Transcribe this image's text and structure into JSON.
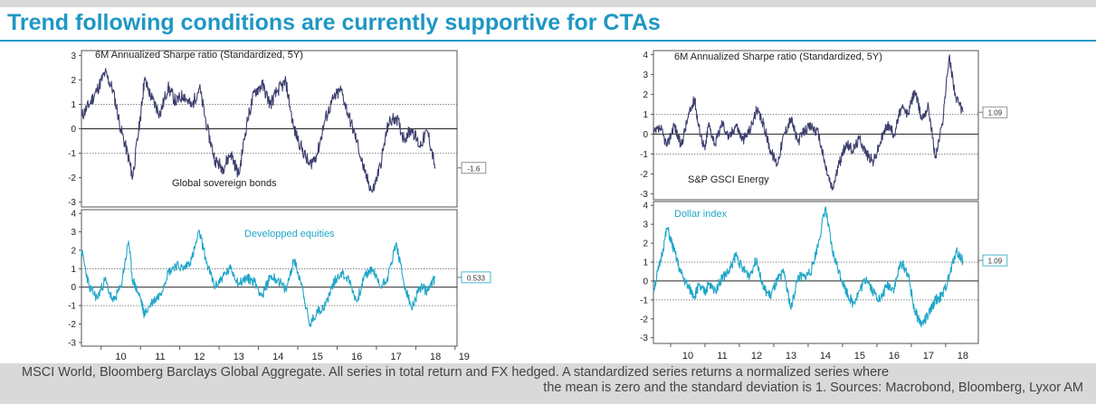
{
  "title": "Trend following conditions are currently supportive for CTAs",
  "footnote": {
    "line1": "MSCI World, Bloomberg Barclays Global Aggregate. All series in total return and FX hedged. A standardized series returns a normalized series where",
    "line2": "the mean is zero and the standard deviation is 1. Sources: Macrobond, Bloomberg, Lyxor AM"
  },
  "colors": {
    "title": "#1f97c4",
    "navy_series": "#3c3f6e",
    "teal_series": "#1ea6c8",
    "background": "#d9d9d9"
  },
  "chart_data": [
    {
      "type": "line",
      "panel": "left-top",
      "title": "6M Annualized Sharpe ratio (Standardized, 5Y)",
      "series": [
        {
          "name": "Global sovereign bonds",
          "color": "#3c3f6e",
          "x": [
            2009.5,
            2009.7,
            2009.9,
            2010.1,
            2010.3,
            2010.5,
            2010.7,
            2010.8,
            2011.0,
            2011.1,
            2011.3,
            2011.5,
            2011.7,
            2011.9,
            2012.1,
            2012.3,
            2012.5,
            2012.7,
            2012.9,
            2013.1,
            2013.3,
            2013.5,
            2013.7,
            2013.9,
            2014.1,
            2014.3,
            2014.5,
            2014.7,
            2014.9,
            2015.1,
            2015.3,
            2015.5,
            2015.7,
            2015.9,
            2016.1,
            2016.3,
            2016.5,
            2016.7,
            2016.9,
            2017.1,
            2017.3,
            2017.5,
            2017.7,
            2017.9,
            2018.1,
            2018.3,
            2018.5
          ],
          "y": [
            0.5,
            1.0,
            1.6,
            2.3,
            1.6,
            0.0,
            -1.2,
            -2.0,
            0.5,
            2.0,
            1.2,
            0.6,
            1.7,
            1.1,
            1.4,
            0.9,
            1.7,
            0.0,
            -1.3,
            -1.6,
            -1.0,
            -1.9,
            0.2,
            1.5,
            1.8,
            1.0,
            1.6,
            1.9,
            0.0,
            -0.8,
            -1.5,
            -1.0,
            0.4,
            1.2,
            1.6,
            0.5,
            -0.5,
            -1.8,
            -2.6,
            -1.5,
            0.2,
            0.5,
            -0.4,
            0.0,
            -0.7,
            -0.1,
            -1.6
          ]
        }
      ],
      "annotations": [
        "Global sovereign bonds"
      ],
      "last_value_label": "-1.6",
      "yticks": [
        3,
        2,
        1,
        0,
        -1,
        -2,
        -3
      ],
      "ylim": [
        -3.2,
        3.2
      ],
      "reference_lines": [
        1,
        0,
        -1
      ]
    },
    {
      "type": "line",
      "panel": "left-bottom",
      "title": "Developped equities",
      "series": [
        {
          "name": "Developped equities",
          "color": "#1ea6c8",
          "x": [
            2009.5,
            2009.7,
            2009.9,
            2010.1,
            2010.3,
            2010.5,
            2010.7,
            2010.8,
            2011.0,
            2011.1,
            2011.3,
            2011.5,
            2011.7,
            2011.9,
            2012.1,
            2012.3,
            2012.5,
            2012.7,
            2012.9,
            2013.1,
            2013.3,
            2013.5,
            2013.7,
            2013.9,
            2014.1,
            2014.3,
            2014.5,
            2014.7,
            2014.9,
            2015.1,
            2015.3,
            2015.5,
            2015.7,
            2015.9,
            2016.1,
            2016.3,
            2016.5,
            2016.7,
            2016.9,
            2017.1,
            2017.3,
            2017.5,
            2017.7,
            2017.9,
            2018.1,
            2018.3,
            2018.5
          ],
          "y": [
            2.0,
            0.0,
            -0.6,
            0.4,
            -0.8,
            0.0,
            2.5,
            0.4,
            -0.6,
            -1.5,
            -0.8,
            -0.4,
            0.8,
            1.2,
            1.0,
            1.5,
            3.0,
            1.2,
            0.0,
            0.6,
            1.0,
            0.2,
            0.5,
            0.3,
            -0.5,
            0.6,
            0.4,
            -0.2,
            1.5,
            0.2,
            -2.1,
            -1.3,
            -1.0,
            0.2,
            0.8,
            0.4,
            -0.8,
            0.6,
            1.0,
            0.0,
            0.6,
            2.4,
            0.2,
            -1.2,
            0.0,
            -0.2,
            0.53
          ]
        }
      ],
      "last_value_label": "0.533",
      "yticks": [
        4,
        3,
        2,
        1,
        0,
        -1,
        -2,
        -3
      ],
      "ylim": [
        -3.2,
        4.2
      ],
      "reference_lines": [
        1,
        0,
        -1
      ],
      "xticks": [
        "10",
        "11",
        "12",
        "13",
        "14",
        "15",
        "16",
        "17",
        "18",
        "19"
      ]
    },
    {
      "type": "line",
      "panel": "right-top",
      "title": "6M Annualized Sharpe ratio (Standardized, 5Y)",
      "series": [
        {
          "name": "S&P GSCI Energy",
          "color": "#3c3f6e",
          "x": [
            2009.5,
            2009.7,
            2009.9,
            2010.1,
            2010.3,
            2010.5,
            2010.7,
            2010.8,
            2011.0,
            2011.1,
            2011.3,
            2011.5,
            2011.7,
            2011.9,
            2012.1,
            2012.3,
            2012.5,
            2012.7,
            2012.9,
            2013.1,
            2013.3,
            2013.5,
            2013.7,
            2013.9,
            2014.1,
            2014.3,
            2014.5,
            2014.7,
            2014.9,
            2015.1,
            2015.3,
            2015.5,
            2015.7,
            2015.9,
            2016.1,
            2016.3,
            2016.5,
            2016.7,
            2016.9,
            2017.1,
            2017.3,
            2017.5,
            2017.7,
            2017.9,
            2018.1,
            2018.3,
            2018.5
          ],
          "y": [
            0.0,
            0.3,
            -0.6,
            0.5,
            -0.6,
            0.8,
            1.8,
            0.5,
            -0.8,
            0.5,
            -0.5,
            0.6,
            -0.2,
            0.5,
            -0.3,
            0.2,
            1.2,
            0.5,
            -0.8,
            -1.5,
            0.0,
            0.8,
            -0.4,
            0.2,
            0.4,
            0.0,
            -1.6,
            -2.8,
            -1.5,
            -0.5,
            -0.8,
            -0.2,
            -1.0,
            -1.4,
            -0.4,
            0.5,
            0.0,
            1.3,
            1.0,
            2.2,
            0.8,
            1.4,
            -1.2,
            0.5,
            3.9,
            1.8,
            1.1
          ]
        }
      ],
      "annotations": [
        "S&P GSCI Energy"
      ],
      "last_value_label": "1.09",
      "yticks": [
        4,
        3,
        2,
        1,
        0,
        -1,
        -2,
        -3
      ],
      "ylim": [
        -3.3,
        4.2
      ],
      "reference_lines": [
        1,
        0,
        -1
      ]
    },
    {
      "type": "line",
      "panel": "right-bottom",
      "title": "Dollar index",
      "series": [
        {
          "name": "Dollar index",
          "color": "#1ea6c8",
          "x": [
            2009.5,
            2009.7,
            2009.9,
            2010.1,
            2010.3,
            2010.5,
            2010.7,
            2010.8,
            2011.0,
            2011.1,
            2011.3,
            2011.5,
            2011.7,
            2011.9,
            2012.1,
            2012.3,
            2012.5,
            2012.7,
            2012.9,
            2013.1,
            2013.3,
            2013.5,
            2013.7,
            2013.9,
            2014.1,
            2014.3,
            2014.5,
            2014.7,
            2014.9,
            2015.1,
            2015.3,
            2015.5,
            2015.7,
            2015.9,
            2016.1,
            2016.3,
            2016.5,
            2016.7,
            2016.9,
            2017.1,
            2017.3,
            2017.5,
            2017.7,
            2017.9,
            2018.1,
            2018.3,
            2018.5
          ],
          "y": [
            -0.5,
            1.0,
            2.8,
            1.6,
            0.4,
            -0.3,
            -0.8,
            -0.3,
            -0.6,
            -0.2,
            -0.5,
            0.2,
            0.5,
            1.4,
            0.6,
            0.3,
            1.2,
            -0.4,
            -0.8,
            0.0,
            0.5,
            -1.5,
            0.2,
            0.2,
            0.6,
            2.0,
            3.9,
            1.6,
            0.5,
            -0.5,
            -1.2,
            -0.5,
            0.2,
            -0.6,
            -1.0,
            -0.2,
            -0.4,
            1.0,
            0.4,
            -1.6,
            -2.3,
            -1.8,
            -1.0,
            -0.8,
            0.2,
            1.6,
            1.09
          ]
        }
      ],
      "last_value_label": "1.09",
      "yticks": [
        4,
        3,
        2,
        1,
        0,
        -1,
        -2,
        -3
      ],
      "ylim": [
        -3.3,
        4.2
      ],
      "reference_lines": [
        1,
        0,
        -1
      ],
      "xticks": [
        "10",
        "11",
        "12",
        "13",
        "14",
        "15",
        "16",
        "17",
        "18"
      ]
    }
  ]
}
